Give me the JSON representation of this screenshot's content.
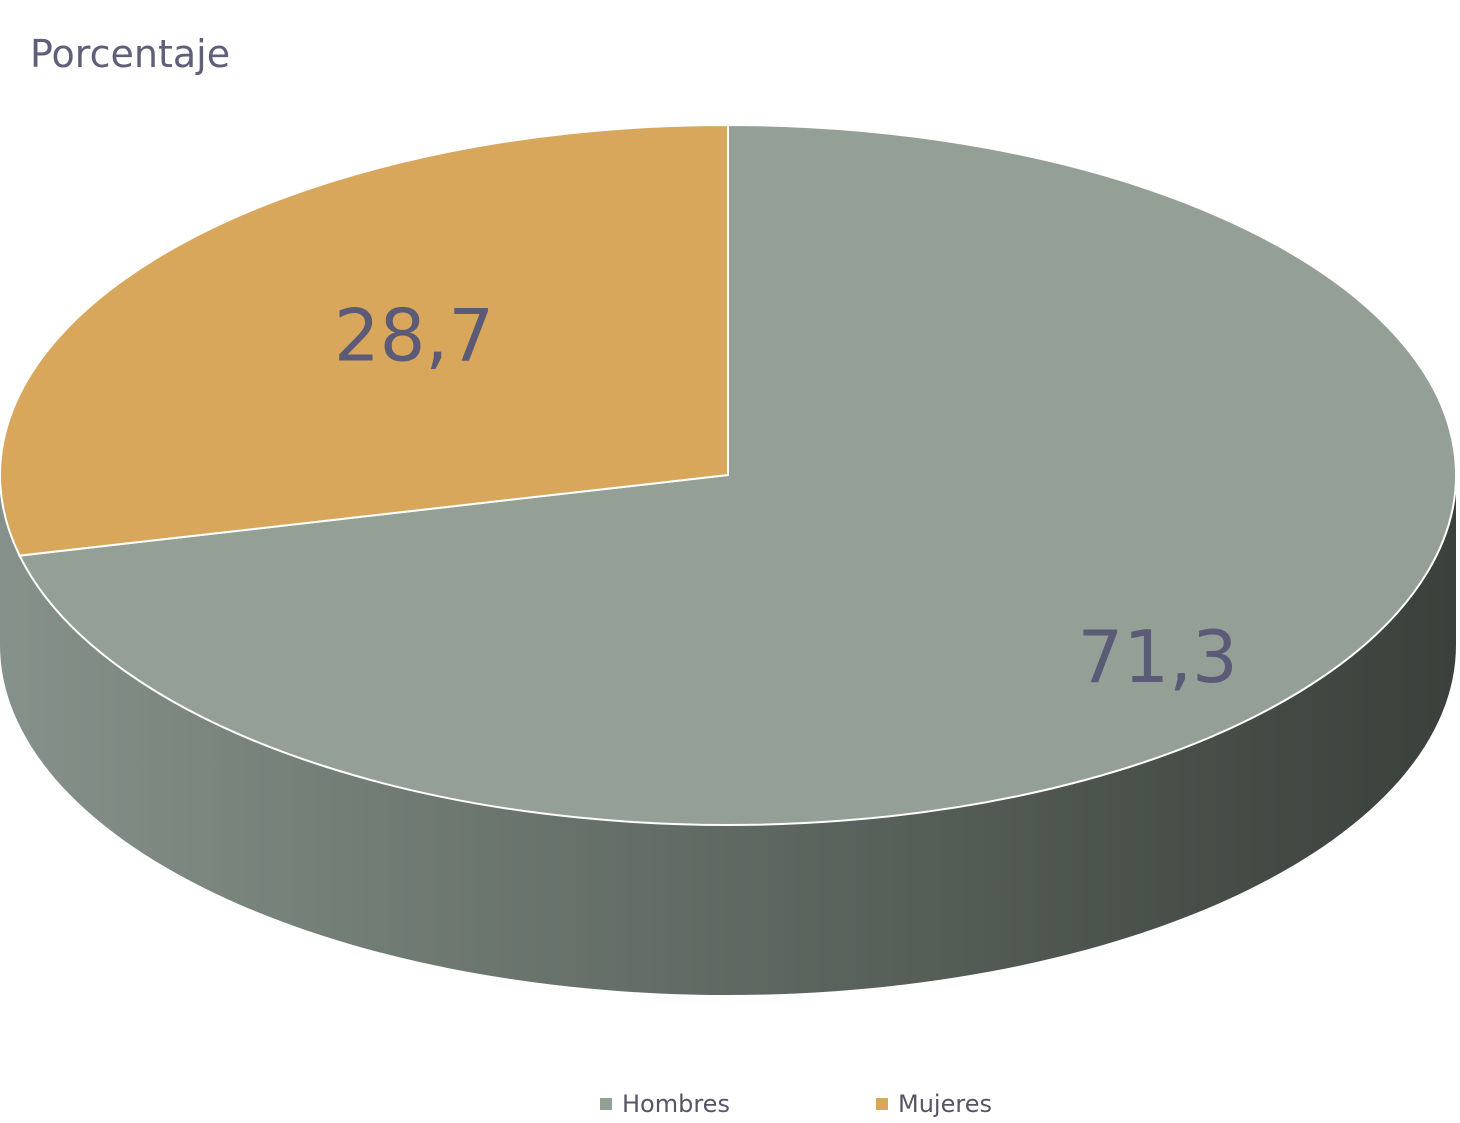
{
  "chart_data": {
    "type": "pie",
    "title": "Porcentaje",
    "slices": [
      {
        "name": "Hombres",
        "value": 71.3,
        "label": "71,3",
        "color": "#94a096"
      },
      {
        "name": "Mujeres",
        "value": 28.7,
        "label": "28,7",
        "color": "#d9a75c"
      }
    ],
    "legend_position": "bottom",
    "three_d": true
  },
  "colors": {
    "label_text": "#5b5b78",
    "side_dark": "#3a403b",
    "side_light": "#85918a"
  }
}
